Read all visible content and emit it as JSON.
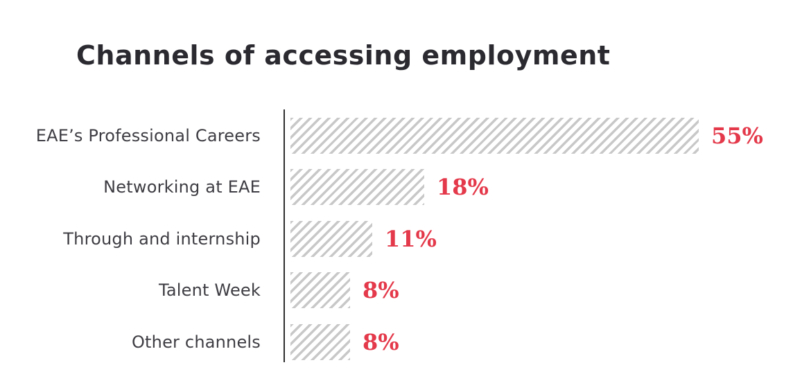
{
  "chart_data": {
    "type": "bar",
    "orientation": "horizontal",
    "title": "Channels of accessing employment",
    "categories": [
      "EAE’s Professional Careers",
      "Networking at EAE",
      "Through and internship",
      "Talent Week",
      "Other channels"
    ],
    "values": [
      55,
      18,
      11,
      8,
      8
    ],
    "value_suffix": "%",
    "xlabel": "",
    "ylabel": "",
    "xlim": [
      0,
      55
    ],
    "grid": false,
    "legend": false,
    "rows": [
      {
        "label": "EAE’s Professional Careers",
        "value": 55,
        "display_value": "55%"
      },
      {
        "label": "Networking at EAE",
        "value": 18,
        "display_value": "18%"
      },
      {
        "label": "Through and internship",
        "value": 11,
        "display_value": "11%"
      },
      {
        "label": "Talent Week",
        "value": 8,
        "display_value": "8%"
      },
      {
        "label": "Other channels",
        "value": 8,
        "display_value": "8%"
      }
    ]
  },
  "colors": {
    "accent-red": "#e4394a",
    "hatch-gray": "#c8c8c8",
    "axis-dark": "#2e2e2e",
    "label-dark": "#3e3d43",
    "title-dark": "#2b2a31",
    "background": "#ffffff"
  }
}
